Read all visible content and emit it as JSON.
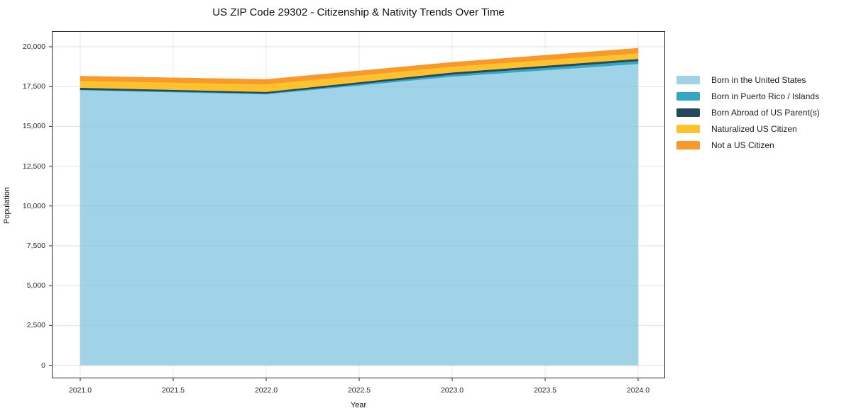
{
  "chart_data": {
    "type": "area",
    "stacked": true,
    "title": "US ZIP Code 29302 - Citizenship & Nativity Trends Over Time",
    "xlabel": "Year",
    "ylabel": "Population",
    "x": [
      2021,
      2022,
      2023,
      2024
    ],
    "series": [
      {
        "name": "Born in the United States",
        "color": "#a0d2e8",
        "values": [
          17280,
          17020,
          18130,
          18930
        ]
      },
      {
        "name": "Born in Puerto Rico / Islands",
        "color": "#35a7c5",
        "values": [
          30,
          50,
          130,
          180
        ]
      },
      {
        "name": "Born Abroad of US Parent(s)",
        "color": "#24485c",
        "values": [
          120,
          100,
          130,
          130
        ]
      },
      {
        "name": "Naturalized US Citizen",
        "color": "#fdc32f",
        "values": [
          435,
          480,
          365,
          360
        ]
      },
      {
        "name": "Not a US Citizen",
        "color": "#f8992a",
        "values": [
          290,
          300,
          270,
          310
        ]
      }
    ],
    "totals": [
      18155,
      17950,
      19025,
      19910
    ],
    "xlim": [
      2020.85,
      2024.15
    ],
    "ylim": [
      0,
      20000
    ],
    "xticks": [
      2021.0,
      2021.5,
      2022.0,
      2022.5,
      2023.0,
      2023.5,
      2024.0
    ],
    "xtick_labels": [
      "2021.0",
      "2021.5",
      "2022.0",
      "2022.5",
      "2023.0",
      "2023.5",
      "2024.0"
    ],
    "yticks": [
      0,
      2500,
      5000,
      7500,
      10000,
      12500,
      15000,
      17500,
      20000
    ],
    "ytick_labels": [
      "0",
      "2,500",
      "5,000",
      "7,500",
      "10,000",
      "12,500",
      "15,000",
      "17,500",
      "20,000"
    ],
    "grid": true,
    "grid_color": "#e9e9e9",
    "spine_color": "#2a2a2a",
    "background_color": "#ffffff",
    "legend_position": "right-outside"
  }
}
